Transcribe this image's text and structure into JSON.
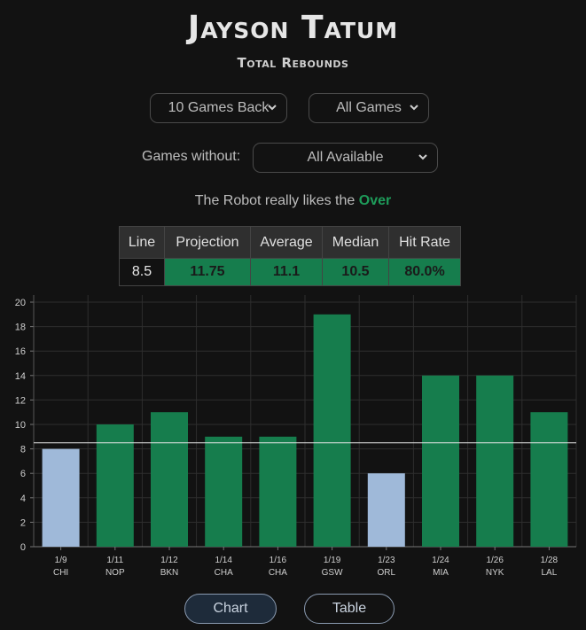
{
  "header": {
    "title": "Jayson Tatum",
    "subtitle": "Total Rebounds"
  },
  "filters": {
    "games_back": "10 Games Back",
    "game_type": "All Games",
    "without_label": "Games without:",
    "without_value": "All Available"
  },
  "robot": {
    "prefix": "The Robot really likes the",
    "pick": "Over"
  },
  "stats": {
    "headers": [
      "Line",
      "Projection",
      "Average",
      "Median",
      "Hit Rate"
    ],
    "values": [
      "8.5",
      "11.75",
      "11.1",
      "10.5",
      "80.0%"
    ]
  },
  "colors": {
    "over": "#167d4d",
    "under": "#9fb9d9",
    "line": "#e8e8e8"
  },
  "chart_data": {
    "type": "bar",
    "dates": [
      "1/9",
      "1/11",
      "1/12",
      "1/14",
      "1/16",
      "1/19",
      "1/23",
      "1/24",
      "1/26",
      "1/28"
    ],
    "opponents": [
      "CHI",
      "NOP",
      "BKN",
      "CHA",
      "CHA",
      "GSW",
      "ORL",
      "MIA",
      "NYK",
      "LAL"
    ],
    "values": [
      8,
      10,
      11,
      9,
      9,
      19,
      6,
      14,
      14,
      11
    ],
    "line": 8.5,
    "ylim": [
      0,
      20
    ],
    "yticks": [
      0,
      2,
      4,
      6,
      8,
      10,
      12,
      14,
      16,
      18,
      20
    ],
    "grid": true
  },
  "views": {
    "chart_label": "Chart",
    "table_label": "Table"
  }
}
